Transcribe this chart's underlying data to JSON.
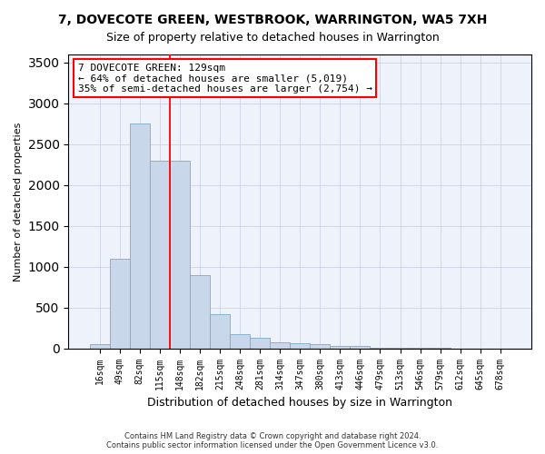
{
  "title": "7, DOVECOTE GREEN, WESTBROOK, WARRINGTON, WA5 7XH",
  "subtitle": "Size of property relative to detached houses in Warrington",
  "xlabel": "Distribution of detached houses by size in Warrington",
  "ylabel": "Number of detached properties",
  "bar_color": "#c8d8ea",
  "bar_edge_color": "#7aaac8",
  "categories": [
    "16sqm",
    "49sqm",
    "82sqm",
    "115sqm",
    "148sqm",
    "182sqm",
    "215sqm",
    "248sqm",
    "281sqm",
    "314sqm",
    "347sqm",
    "380sqm",
    "413sqm",
    "446sqm",
    "479sqm",
    "513sqm",
    "546sqm",
    "579sqm",
    "612sqm",
    "645sqm",
    "678sqm"
  ],
  "values": [
    55,
    1100,
    2750,
    2300,
    2300,
    900,
    420,
    175,
    125,
    80,
    65,
    55,
    35,
    35,
    10,
    10,
    5,
    5,
    2,
    2,
    2
  ],
  "ylim": [
    0,
    3600
  ],
  "yticks": [
    0,
    500,
    1000,
    1500,
    2000,
    2500,
    3000,
    3500
  ],
  "property_label": "7 DOVECOTE GREEN: 129sqm",
  "annotation_line1": "← 64% of detached houses are smaller (5,019)",
  "annotation_line2": "35% of semi-detached houses are larger (2,754) →",
  "red_line_x": 3.5,
  "footer1": "Contains HM Land Registry data © Crown copyright and database right 2024.",
  "footer2": "Contains public sector information licensed under the Open Government Licence v3.0.",
  "background_color": "#eef2fb",
  "grid_color": "#c8cce0"
}
